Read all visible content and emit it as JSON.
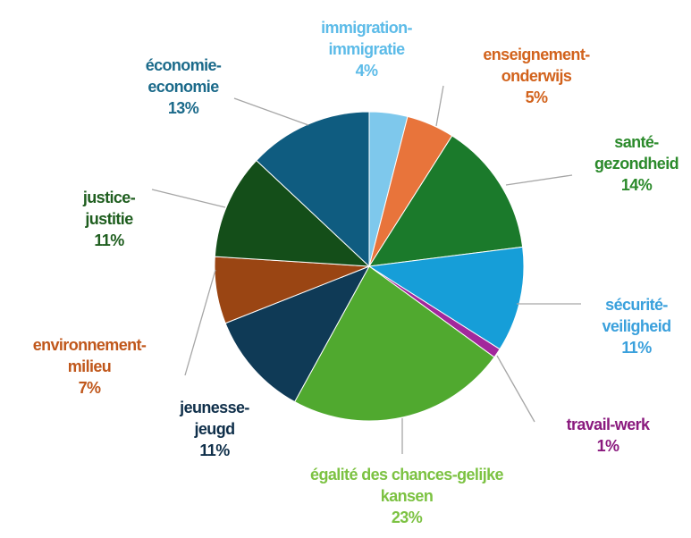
{
  "chart_data": {
    "type": "pie",
    "categories": [
      "immigration-immigratie",
      "enseignement-onderwijs",
      "santé-gezondheid",
      "sécurité-veiligheid",
      "travail-werk",
      "égalité des chances-gelijke kansen",
      "jeunesse-jeugd",
      "environnement-milieu",
      "justice-justitie",
      "économie-economie"
    ],
    "values": [
      4,
      5,
      14,
      11,
      1,
      23,
      11,
      7,
      11,
      13
    ],
    "value_labels": [
      "4%",
      "5%",
      "14%",
      "11%",
      "1%",
      "23%",
      "11%",
      "7%",
      "11%",
      "13%"
    ],
    "colors": [
      "#7ec8ec",
      "#e8743b",
      "#1b7a2b",
      "#169ed8",
      "#a2289c",
      "#50a92f",
      "#0f3a56",
      "#9a4513",
      "#144e19",
      "#0f5c80"
    ],
    "label_colors": [
      "#5cbbe8",
      "#d2631d",
      "#2b8a2b",
      "#3aa0dc",
      "#8a1a7e",
      "#7cc242",
      "#0f2f4a",
      "#c0571b",
      "#1f5e1f",
      "#1b6a8a"
    ]
  }
}
